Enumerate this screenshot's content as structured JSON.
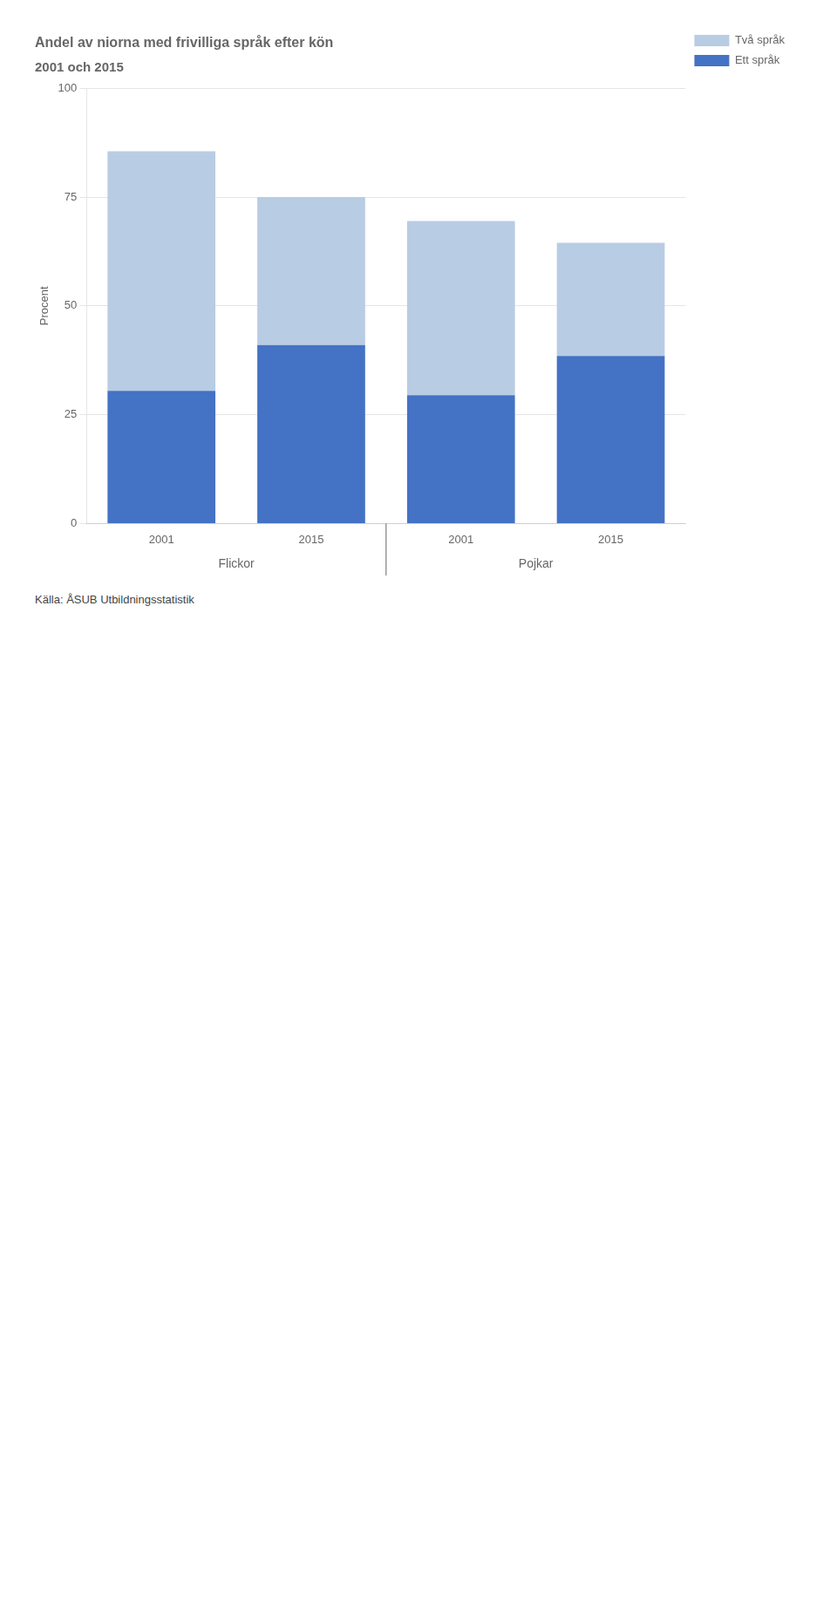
{
  "chart_data": {
    "type": "bar",
    "title": "Andel av niorna med frivilliga språk efter kön",
    "subtitle": "2001 och 2015",
    "y_label": "Procent",
    "categories": [
      "2001",
      "2015",
      "2001",
      "2015"
    ],
    "annotations": [
      "Flickor",
      "Pojkar"
    ],
    "series": [
      {
        "name": "Ett språk",
        "color": "#4472C4",
        "values": [
          30.5,
          41.0,
          29.5,
          38.5
        ]
      },
      {
        "name": "Två språk",
        "color": "#B8CCE4",
        "values": [
          55.0,
          34.0,
          40.0,
          26.0
        ]
      }
    ],
    "stacked": true,
    "ylim": [
      0,
      100
    ],
    "yticks": [
      0,
      25,
      50,
      75,
      100
    ],
    "grid": true,
    "legend": "upper right",
    "source": "Källa: ÅSUB Utbildningsstatistik"
  }
}
